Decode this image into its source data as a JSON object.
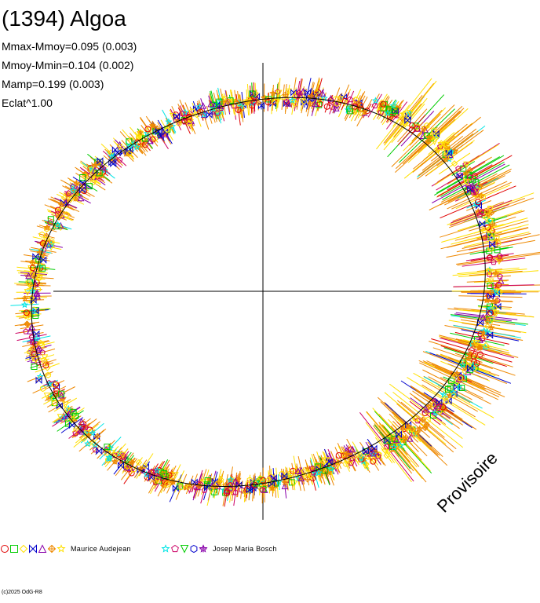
{
  "title": "(1394) Algoa",
  "stats": {
    "line1": "Mmax-Mmoy=0.095 (0.003)",
    "line2": "Mmoy-Mmin=0.104 (0.002)",
    "line3": "Mamp=0.199 (0.003)",
    "line4": "Eclat^1.00"
  },
  "watermark": "Provisoire",
  "copyright": "(c)2025 OdG-R8",
  "colors": {
    "red": "#e00000",
    "green": "#00cc00",
    "yellow": "#ffe000",
    "blue": "#0000cc",
    "violet": "#8800aa",
    "orange": "#ee8800",
    "cyan": "#00e5e5",
    "magenta": "#cc0066",
    "black": "#000000"
  },
  "legend": [
    {
      "observer": "Maurice Audejean",
      "markers": [
        {
          "shape": "circle",
          "color": "red"
        },
        {
          "shape": "square",
          "color": "green"
        },
        {
          "shape": "diamond",
          "color": "yellow"
        },
        {
          "shape": "bowtie",
          "color": "blue"
        },
        {
          "shape": "triangle",
          "color": "violet"
        },
        {
          "shape": "diamond-cross",
          "color": "orange"
        },
        {
          "shape": "star",
          "color": "yellow"
        }
      ]
    },
    {
      "observer": "Josep Maria Bosch",
      "markers": [
        {
          "shape": "star",
          "color": "cyan"
        },
        {
          "shape": "pentagon",
          "color": "magenta"
        },
        {
          "shape": "triangle-down",
          "color": "green"
        },
        {
          "shape": "hexagon",
          "color": "blue"
        },
        {
          "shape": "star-cross",
          "color": "violet"
        }
      ]
    }
  ],
  "chart_data": {
    "type": "polar-lightcurve",
    "title": "(1394) Algoa",
    "phase_range": [
      0,
      1
    ],
    "model_amplitude_mag": 0.199,
    "mmax_minus_mmoy": 0.095,
    "mmoy_minus_mmin": 0.104,
    "brightness_exponent": 1.0,
    "axes": "crosshair through center, no tick labels",
    "series": [
      {
        "name": "Maurice Audejean",
        "marker_colors": [
          "red",
          "green",
          "yellow",
          "blue",
          "violet",
          "orange",
          "yellow"
        ]
      },
      {
        "name": "Josep Maria Bosch",
        "marker_colors": [
          "cyan",
          "magenta",
          "green",
          "blue",
          "violet"
        ]
      }
    ]
  }
}
